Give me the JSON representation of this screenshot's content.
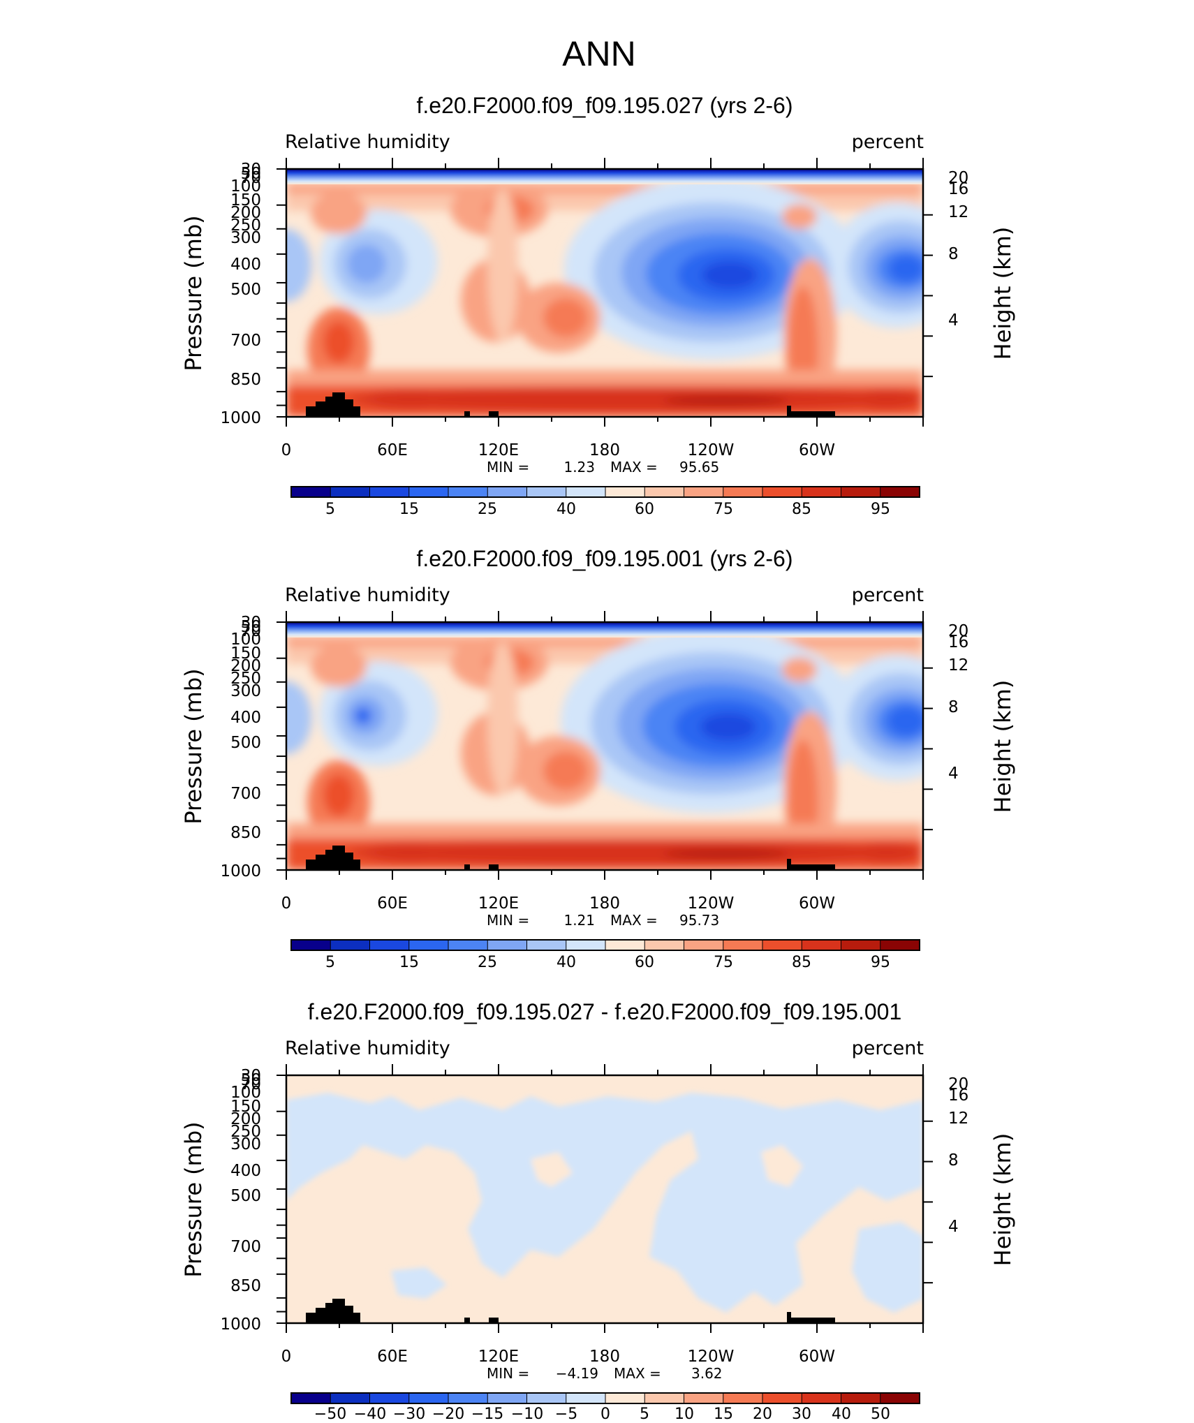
{
  "figure": {
    "title": "ANN",
    "tick_color": "#000000"
  },
  "chart_data": [
    {
      "type": "heatmap",
      "title": "f.e20.F2000.f09_f09.195.027 (yrs 2-6)",
      "left_label": "Relative humidity",
      "right_label": "percent",
      "ylabel": "Pressure (mb)",
      "ylabel_right": "Height (km)",
      "x_ticks": [
        "0",
        "60E",
        "120E",
        "180",
        "120W",
        "60W"
      ],
      "y_ticks": [
        "30",
        "50",
        "70",
        "100",
        "150",
        "200",
        "250",
        "300",
        "400",
        "500",
        "700",
        "850",
        "1000"
      ],
      "y_ticks_right": [
        "20",
        "16",
        "12",
        "8",
        "4"
      ],
      "stats": {
        "min_label": "MIN =",
        "min": "1.23",
        "max_label": "MAX =",
        "max": "95.65"
      },
      "colorbar": {
        "labels": [
          "5",
          "15",
          "25",
          "40",
          "60",
          "75",
          "85",
          "95"
        ],
        "colors": [
          "#08008b",
          "#0c2fc0",
          "#1a48e0",
          "#2b66f0",
          "#4c84f4",
          "#7fa6f4",
          "#a9c6f6",
          "#d3e5fa",
          "#fde9d7",
          "#fbc8ad",
          "#f9a383",
          "#f57a54",
          "#ec4f2c",
          "#d8331c",
          "#b71c0d",
          "#8a0404"
        ]
      }
    },
    {
      "type": "heatmap",
      "title": "f.e20.F2000.f09_f09.195.001 (yrs 2-6)",
      "left_label": "Relative humidity",
      "right_label": "percent",
      "ylabel": "Pressure (mb)",
      "ylabel_right": "Height (km)",
      "x_ticks": [
        "0",
        "60E",
        "120E",
        "180",
        "120W",
        "60W"
      ],
      "y_ticks": [
        "30",
        "50",
        "70",
        "100",
        "150",
        "200",
        "250",
        "300",
        "400",
        "500",
        "700",
        "850",
        "1000"
      ],
      "y_ticks_right": [
        "20",
        "16",
        "12",
        "8",
        "4"
      ],
      "stats": {
        "min_label": "MIN =",
        "min": "1.21",
        "max_label": "MAX =",
        "max": "95.73"
      },
      "colorbar": {
        "labels": [
          "5",
          "15",
          "25",
          "40",
          "60",
          "75",
          "85",
          "95"
        ],
        "colors": [
          "#08008b",
          "#0c2fc0",
          "#1a48e0",
          "#2b66f0",
          "#4c84f4",
          "#7fa6f4",
          "#a9c6f6",
          "#d3e5fa",
          "#fde9d7",
          "#fbc8ad",
          "#f9a383",
          "#f57a54",
          "#ec4f2c",
          "#d8331c",
          "#b71c0d",
          "#8a0404"
        ]
      }
    },
    {
      "type": "heatmap",
      "title": "f.e20.F2000.f09_f09.195.027 - f.e20.F2000.f09_f09.195.001",
      "left_label": "Relative humidity",
      "right_label": "percent",
      "ylabel": "Pressure (mb)",
      "ylabel_right": "Height (km)",
      "x_ticks": [
        "0",
        "60E",
        "120E",
        "180",
        "120W",
        "60W"
      ],
      "y_ticks": [
        "30",
        "50",
        "70",
        "100",
        "150",
        "200",
        "250",
        "300",
        "400",
        "500",
        "700",
        "850",
        "1000"
      ],
      "y_ticks_right": [
        "20",
        "16",
        "12",
        "8",
        "4"
      ],
      "stats": {
        "min_label": "MIN =",
        "min": "−4.19",
        "max_label": "MAX =",
        "max": "3.62"
      },
      "colorbar": {
        "labels": [
          "−50",
          "−40",
          "−30",
          "−20",
          "−15",
          "−10",
          "−5",
          "0",
          "5",
          "10",
          "15",
          "20",
          "30",
          "40",
          "50"
        ],
        "colors": [
          "#08008b",
          "#0c2fc0",
          "#1a48e0",
          "#2b66f0",
          "#4c84f4",
          "#7fa6f4",
          "#a9c6f6",
          "#d3e5fa",
          "#fde9d7",
          "#fbc8ad",
          "#f9a383",
          "#f57a54",
          "#ec4f2c",
          "#d8331c",
          "#b71c0d",
          "#8a0404"
        ]
      }
    }
  ]
}
